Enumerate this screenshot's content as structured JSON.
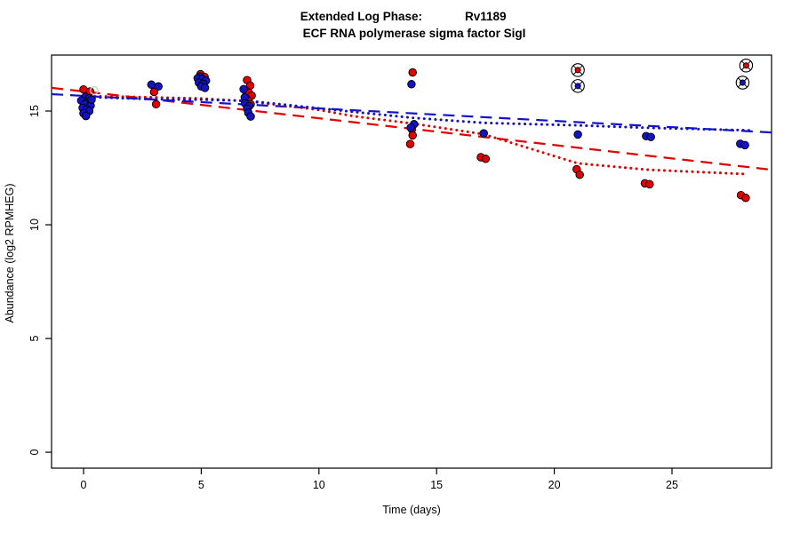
{
  "title": {
    "prefix": "Extended Log Phase:",
    "gene": "Rv1189",
    "subtitle": "ECF RNA polymerase sigma factor SigI"
  },
  "chart_data": {
    "type": "scatter",
    "xlabel": "Time  (days)",
    "ylabel": "Abundance  (log2 RPMHEG)",
    "x_ticks": [
      0,
      5,
      10,
      15,
      20,
      25
    ],
    "y_ticks": [
      0,
      5,
      10,
      15
    ],
    "xlim": [
      -1.36,
      29.23
    ],
    "ylim": [
      -0.7,
      17.46
    ],
    "grid": false,
    "legend": "none",
    "colors": {
      "red": "#e20000",
      "blue": "#1212c8",
      "open_marker": "#cfcfcf"
    },
    "series": [
      {
        "name": "red",
        "color": "red",
        "points": [
          [
            0.0,
            15.95
          ],
          [
            0.28,
            15.86
          ],
          [
            3.0,
            15.84
          ],
          [
            3.08,
            15.3
          ],
          [
            4.97,
            16.62
          ],
          [
            5.14,
            16.5
          ],
          [
            6.95,
            16.36
          ],
          [
            7.08,
            16.12
          ],
          [
            6.88,
            15.9
          ],
          [
            7.02,
            15.8
          ],
          [
            7.14,
            15.68
          ],
          [
            6.9,
            15.55
          ],
          [
            7.0,
            15.44
          ],
          [
            7.1,
            15.3
          ],
          [
            13.98,
            16.7
          ],
          [
            13.95,
            14.2
          ],
          [
            13.98,
            13.93
          ],
          [
            13.88,
            13.55
          ],
          [
            16.88,
            12.97
          ],
          [
            17.08,
            12.9
          ],
          [
            20.95,
            12.44
          ],
          [
            21.08,
            12.2
          ],
          [
            23.85,
            11.82
          ],
          [
            24.05,
            11.78
          ],
          [
            27.93,
            11.3
          ],
          [
            28.13,
            11.18
          ]
        ]
      },
      {
        "name": "blue",
        "color": "blue",
        "points": [
          [
            0.08,
            15.62
          ],
          [
            0.24,
            15.55
          ],
          [
            -0.1,
            15.46
          ],
          [
            0.2,
            15.4
          ],
          [
            0.04,
            15.3
          ],
          [
            0.3,
            15.24
          ],
          [
            -0.04,
            15.14
          ],
          [
            0.14,
            15.07
          ],
          [
            0.24,
            15.0
          ],
          [
            0.0,
            14.9
          ],
          [
            0.1,
            14.78
          ],
          [
            0.34,
            15.5
          ],
          [
            2.88,
            16.16
          ],
          [
            3.18,
            16.08
          ],
          [
            4.95,
            16.52
          ],
          [
            4.85,
            16.44
          ],
          [
            5.05,
            16.4
          ],
          [
            5.2,
            16.33
          ],
          [
            4.9,
            16.25
          ],
          [
            5.08,
            16.19
          ],
          [
            5.0,
            16.08
          ],
          [
            5.16,
            16.02
          ],
          [
            6.8,
            15.96
          ],
          [
            6.85,
            15.6
          ],
          [
            6.86,
            15.34
          ],
          [
            7.04,
            15.22
          ],
          [
            6.95,
            15.1
          ],
          [
            7.0,
            14.92
          ],
          [
            7.1,
            14.76
          ],
          [
            13.93,
            16.18
          ],
          [
            14.04,
            14.42
          ],
          [
            13.9,
            14.27
          ],
          [
            17.0,
            14.02
          ],
          [
            21.0,
            13.97
          ],
          [
            23.9,
            13.9
          ],
          [
            24.1,
            13.86
          ],
          [
            27.9,
            13.56
          ],
          [
            28.1,
            13.5
          ]
        ]
      }
    ],
    "circled_outliers": [
      {
        "x": 21.0,
        "y": 16.8,
        "series": "red"
      },
      {
        "x": 21.0,
        "y": 16.1,
        "series": "blue"
      },
      {
        "x": 28.15,
        "y": 17.0,
        "series": "red"
      },
      {
        "x": 28.0,
        "y": 16.25,
        "series": "blue"
      }
    ],
    "open_points": [
      {
        "x": 0.45,
        "y": 15.9
      }
    ],
    "trend_lines": [
      {
        "name": "red-linear-fit",
        "series": "red",
        "style": "dashed",
        "points": [
          [
            -1.36,
            16.02
          ],
          [
            29.23,
            12.42
          ]
        ]
      },
      {
        "name": "blue-linear-fit",
        "series": "blue",
        "style": "dashed",
        "points": [
          [
            -1.36,
            15.74
          ],
          [
            29.23,
            14.06
          ]
        ]
      },
      {
        "name": "red-smooth-fit",
        "series": "red",
        "style": "dotted",
        "points": [
          [
            0,
            15.66
          ],
          [
            3,
            15.6
          ],
          [
            5,
            15.55
          ],
          [
            7,
            15.43
          ],
          [
            10,
            15.05
          ],
          [
            11.5,
            14.77
          ],
          [
            14,
            14.45
          ],
          [
            17,
            13.98
          ],
          [
            19,
            13.34
          ],
          [
            21,
            12.7
          ],
          [
            24,
            12.42
          ],
          [
            28.1,
            12.23
          ]
        ]
      },
      {
        "name": "blue-smooth-fit",
        "series": "blue",
        "style": "dotted",
        "points": [
          [
            0,
            15.62
          ],
          [
            3,
            15.52
          ],
          [
            5,
            15.5
          ],
          [
            7,
            15.45
          ],
          [
            10,
            15.12
          ],
          [
            11.5,
            14.96
          ],
          [
            14,
            14.7
          ],
          [
            17,
            14.48
          ],
          [
            21,
            14.37
          ],
          [
            24,
            14.26
          ],
          [
            28.4,
            14.15
          ]
        ]
      }
    ]
  }
}
